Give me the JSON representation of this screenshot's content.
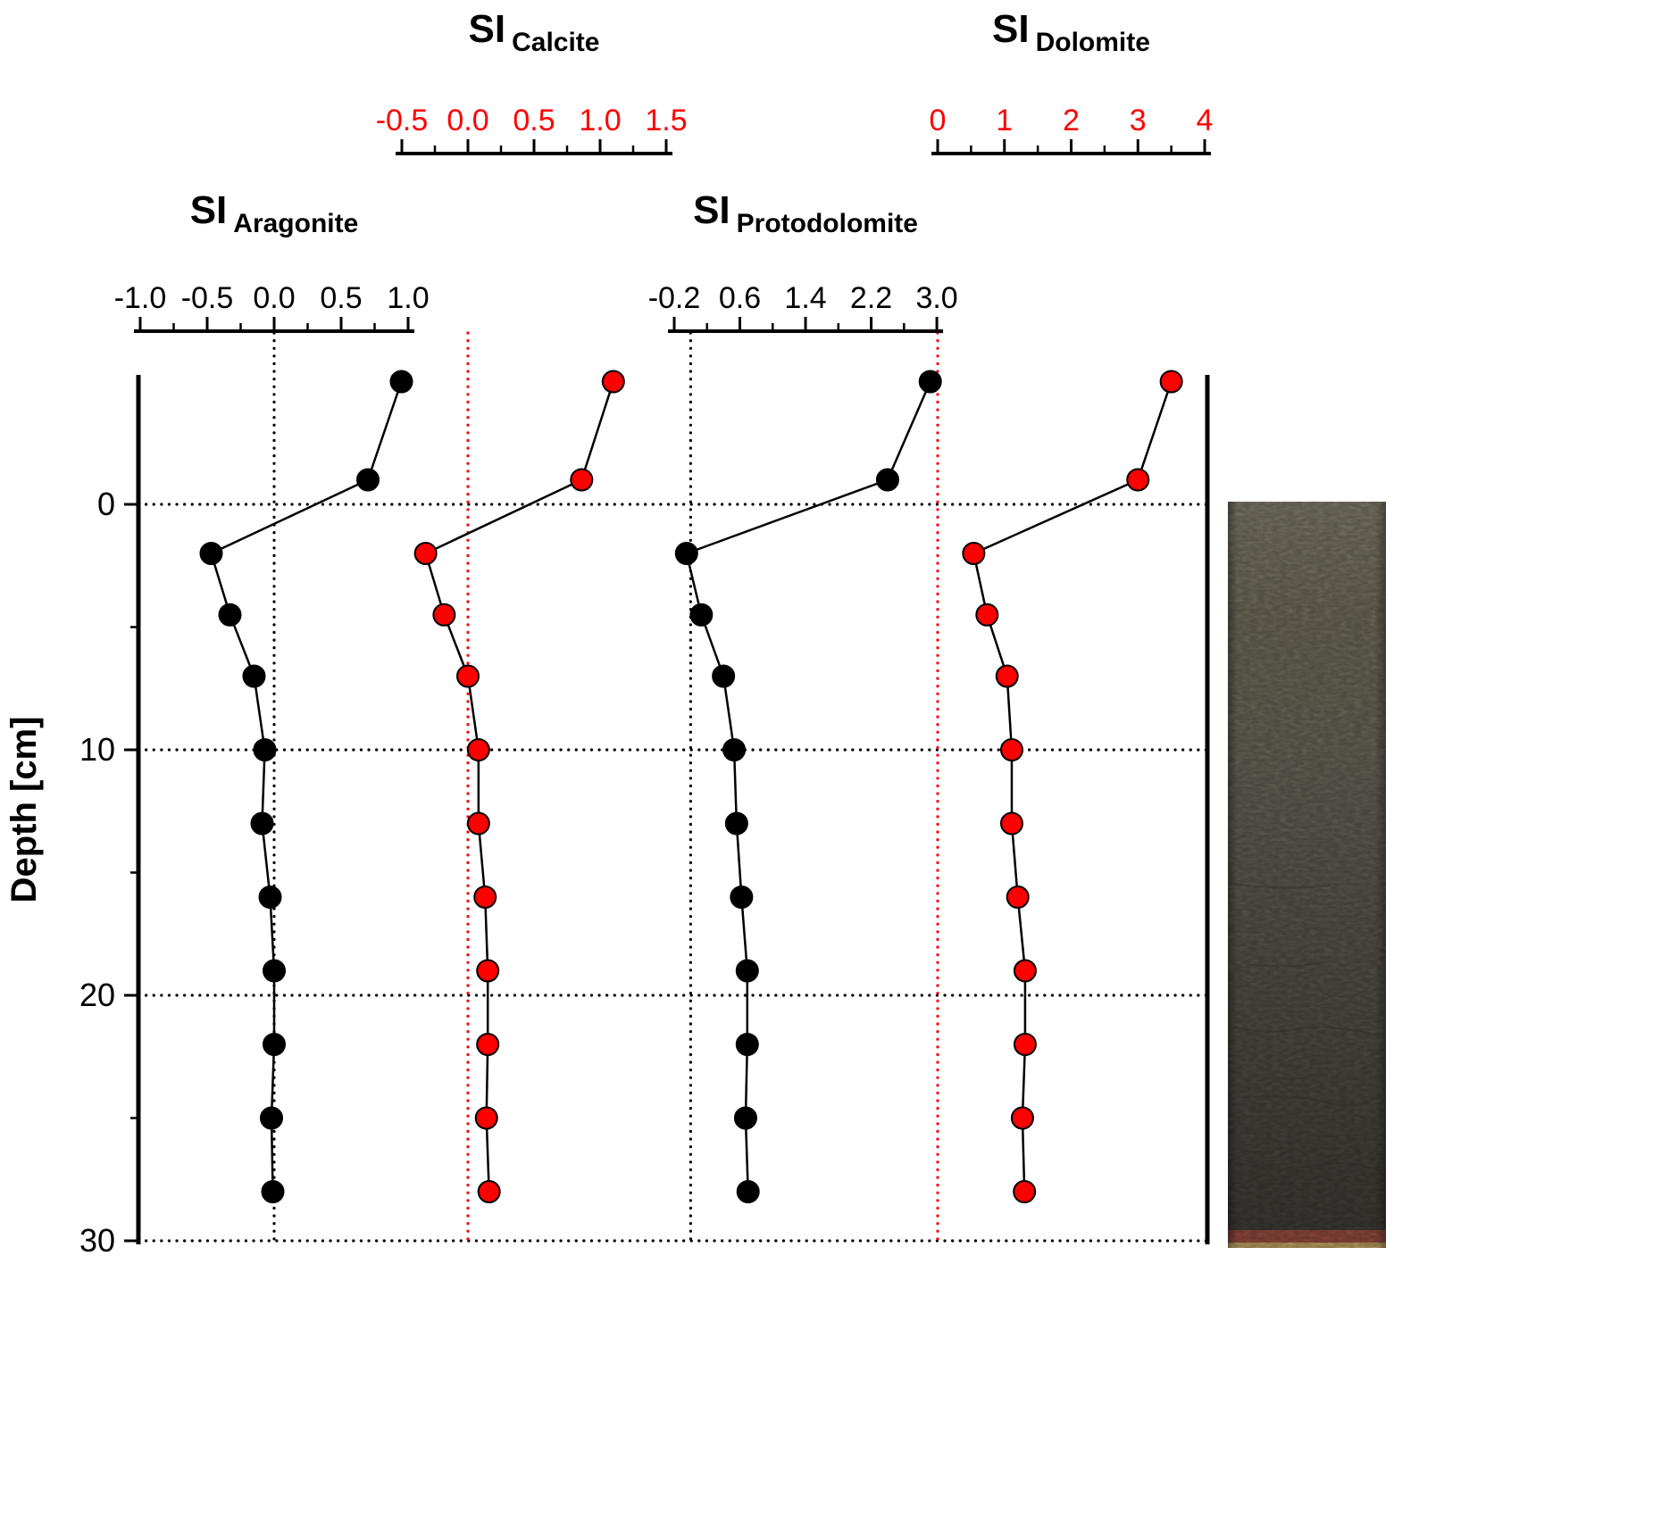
{
  "figure": {
    "colors": {
      "black": "#000000",
      "red": "#ff0000",
      "background": "#ffffff"
    }
  },
  "chart_data": {
    "type": "line",
    "layout_hint": "four saturation-index depth profiles sharing one vertical depth axis; x-axes drawn on top; horizontal dotted gridlines; vertical dotted reference lines at SI = 0 of each panel; sediment core photograph on right",
    "ylabel": "Depth [cm]",
    "ylim": [
      -5.5,
      30
    ],
    "depth_ticks": [
      0,
      10,
      20,
      30
    ],
    "depth_minor_ticks": [
      5,
      15,
      25
    ],
    "grid": "horizontal dotted lines at depth ticks",
    "depths_cm": [
      -5,
      -1,
      2,
      4.5,
      7,
      10,
      13,
      16,
      19,
      22,
      25,
      28
    ],
    "series": [
      {
        "key": "aragonite",
        "name": "SI Aragonite",
        "title_main": "SI",
        "title_sub": "Aragonite",
        "marker_fill": "#000000",
        "axis_label_color": "#000000",
        "x_ticks": [
          -1.0,
          -0.5,
          0.0,
          0.5,
          1.0
        ],
        "x_tick_labels": [
          "-1.0",
          "-0.5",
          "0.0",
          "0.5",
          "1.0"
        ],
        "reference_line": {
          "value": 0.0,
          "color": "#000000",
          "style": "dotted"
        },
        "values": [
          0.95,
          0.7,
          -0.47,
          -0.33,
          -0.15,
          -0.07,
          -0.09,
          -0.03,
          0.0,
          0.0,
          -0.02,
          -0.01
        ]
      },
      {
        "key": "calcite",
        "name": "SI Calcite",
        "title_main": "SI",
        "title_sub": "Calcite",
        "marker_fill": "#ff0000",
        "axis_label_color": "#ff0000",
        "x_ticks": [
          -0.5,
          0.0,
          0.5,
          1.0,
          1.5
        ],
        "x_tick_labels": [
          "-0.5",
          "0.0",
          "0.5",
          "1.0",
          "1.5"
        ],
        "reference_line": {
          "value": 0.0,
          "color": "#ff0000",
          "style": "dotted"
        },
        "values": [
          1.1,
          0.86,
          -0.32,
          -0.18,
          0.0,
          0.08,
          0.08,
          0.13,
          0.15,
          0.15,
          0.14,
          0.16
        ]
      },
      {
        "key": "protodolomite",
        "name": "SI Protodolomite",
        "title_main": "SI",
        "title_sub": "Protodolomite",
        "marker_fill": "#000000",
        "axis_label_color": "#000000",
        "x_ticks": [
          -0.2,
          0.6,
          1.4,
          2.2,
          3.0
        ],
        "x_tick_labels": [
          "-0.2",
          "0.6",
          "1.4",
          "2.2",
          "3.0"
        ],
        "reference_line": {
          "value": 0.0,
          "color": "#000000",
          "style": "dotted"
        },
        "values": [
          2.92,
          2.4,
          -0.05,
          0.13,
          0.4,
          0.53,
          0.56,
          0.62,
          0.69,
          0.69,
          0.67,
          0.7
        ]
      },
      {
        "key": "dolomite",
        "name": "SI Dolomite",
        "title_main": "SI",
        "title_sub": "Dolomite",
        "marker_fill": "#ff0000",
        "axis_label_color": "#ff0000",
        "x_ticks": [
          0,
          1,
          2,
          3,
          4
        ],
        "x_tick_labels": [
          "0",
          "1",
          "2",
          "3",
          "4"
        ],
        "reference_line": {
          "value": 0.0,
          "color": "#ff0000",
          "style": "dotted"
        },
        "values": [
          3.5,
          3.0,
          0.54,
          0.74,
          1.04,
          1.11,
          1.11,
          1.2,
          1.31,
          1.31,
          1.27,
          1.3
        ]
      }
    ]
  },
  "core_photo": {
    "description": "sediment core photograph spanning 0-30 cm depth",
    "colors_top_to_bottom": [
      "#85816f",
      "#76725f",
      "#6e6a5e",
      "#5e5b51",
      "#4f4c45",
      "#413e38"
    ],
    "bottom_band_color": "#9c4f43",
    "bottom_edge_color": "#c9a868"
  }
}
